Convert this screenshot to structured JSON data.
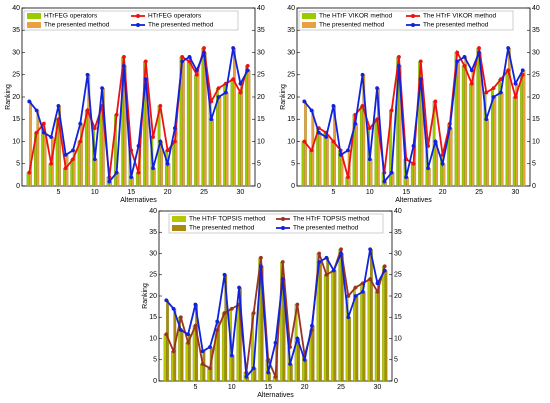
{
  "chart_data": [
    {
      "type": "combo",
      "xlabel": "Alternatives",
      "ylabel": "Ranking",
      "legend": "upper left",
      "x": [
        1,
        2,
        3,
        4,
        5,
        6,
        7,
        8,
        9,
        10,
        11,
        12,
        13,
        14,
        15,
        16,
        17,
        18,
        19,
        20,
        21,
        22,
        23,
        24,
        25,
        26,
        27,
        28,
        29,
        30,
        31
      ],
      "xlim": [
        0,
        32
      ],
      "xticks": [
        5,
        10,
        15,
        20,
        25,
        30
      ],
      "ylim": [
        0,
        40
      ],
      "yticks": [
        0,
        5,
        10,
        15,
        20,
        25,
        30,
        35,
        40
      ],
      "y2lim": [
        0,
        40
      ],
      "y2ticks": [
        0,
        5,
        10,
        15,
        20,
        25,
        30,
        35,
        40
      ],
      "series": [
        {
          "name": "HTrFEG operators",
          "type": "bar",
          "color": "#99cc00",
          "values": [
            3,
            12,
            14,
            5,
            15,
            4,
            6,
            10,
            17,
            13,
            18,
            2,
            16,
            29,
            8,
            3,
            28,
            11,
            18,
            8,
            10,
            29,
            28,
            25,
            31,
            19,
            22,
            23,
            24,
            21,
            27
          ]
        },
        {
          "name": "The presented method",
          "type": "bar",
          "color": "#e8a040",
          "values": [
            19,
            17,
            12,
            11,
            18,
            7,
            8,
            14,
            25,
            6,
            22,
            1,
            3,
            27,
            2,
            9,
            24,
            4,
            10,
            5,
            13,
            28,
            29,
            26,
            30,
            15,
            20,
            21,
            31,
            23,
            26
          ]
        },
        {
          "name": "HTrFEG operators",
          "type": "line",
          "color": "#ee1111",
          "values": [
            3,
            12,
            14,
            5,
            15,
            4,
            6,
            10,
            17,
            13,
            18,
            2,
            16,
            29,
            8,
            3,
            28,
            11,
            18,
            8,
            10,
            29,
            28,
            25,
            31,
            19,
            22,
            23,
            24,
            21,
            27
          ]
        },
        {
          "name": "The presented method",
          "type": "line",
          "color": "#1122dd",
          "values": [
            19,
            17,
            12,
            11,
            18,
            7,
            8,
            14,
            25,
            6,
            22,
            1,
            3,
            27,
            2,
            9,
            24,
            4,
            10,
            5,
            13,
            28,
            29,
            26,
            30,
            15,
            20,
            21,
            31,
            23,
            26
          ]
        }
      ]
    },
    {
      "type": "combo",
      "xlabel": "Alternatives",
      "ylabel": "Ranking",
      "legend": "upper left",
      "x": [
        1,
        2,
        3,
        4,
        5,
        6,
        7,
        8,
        9,
        10,
        11,
        12,
        13,
        14,
        15,
        16,
        17,
        18,
        19,
        20,
        21,
        22,
        23,
        24,
        25,
        26,
        27,
        28,
        29,
        30,
        31
      ],
      "xlim": [
        0,
        32
      ],
      "xticks": [
        5,
        10,
        15,
        20,
        25,
        30
      ],
      "ylim": [
        0,
        40
      ],
      "yticks": [
        0,
        5,
        10,
        15,
        20,
        25,
        30,
        35,
        40
      ],
      "y2lim": [
        0,
        40
      ],
      "y2ticks": [
        0,
        5,
        10,
        15,
        20,
        25,
        30,
        35,
        40
      ],
      "series": [
        {
          "name": "The HTrF VIKOR method",
          "type": "bar",
          "color": "#99cc00",
          "values": [
            10,
            8,
            13,
            12,
            10,
            8,
            2,
            16,
            18,
            13,
            15,
            3,
            17,
            29,
            6,
            5,
            28,
            9,
            19,
            7,
            14,
            30,
            27,
            23,
            31,
            21,
            22,
            24,
            26,
            20,
            25
          ]
        },
        {
          "name": "The presented method",
          "type": "bar",
          "color": "#e8a040",
          "values": [
            19,
            17,
            12,
            11,
            18,
            7,
            8,
            14,
            25,
            6,
            22,
            1,
            3,
            27,
            2,
            9,
            24,
            4,
            10,
            5,
            13,
            28,
            29,
            26,
            30,
            15,
            20,
            21,
            31,
            23,
            26
          ]
        },
        {
          "name": "The HTrF VIKOR method",
          "type": "line",
          "color": "#ee1111",
          "values": [
            10,
            8,
            13,
            12,
            10,
            8,
            2,
            16,
            18,
            13,
            15,
            3,
            17,
            29,
            6,
            5,
            28,
            9,
            19,
            7,
            14,
            30,
            27,
            23,
            31,
            21,
            22,
            24,
            26,
            20,
            25
          ]
        },
        {
          "name": "The presented method",
          "type": "line",
          "color": "#1122dd",
          "values": [
            19,
            17,
            12,
            11,
            18,
            7,
            8,
            14,
            25,
            6,
            22,
            1,
            3,
            27,
            2,
            9,
            24,
            4,
            10,
            5,
            13,
            28,
            29,
            26,
            30,
            15,
            20,
            21,
            31,
            23,
            26
          ]
        }
      ]
    },
    {
      "type": "combo",
      "xlabel": "Alternatives",
      "ylabel": "Ranking",
      "legend": "upper center",
      "x": [
        1,
        2,
        3,
        4,
        5,
        6,
        7,
        8,
        9,
        10,
        11,
        12,
        13,
        14,
        15,
        16,
        17,
        18,
        19,
        20,
        21,
        22,
        23,
        24,
        25,
        26,
        27,
        28,
        29,
        30,
        31
      ],
      "xlim": [
        0,
        32
      ],
      "xticks": [
        5,
        10,
        15,
        20,
        25,
        30
      ],
      "ylim": [
        0,
        40
      ],
      "yticks": [
        0,
        5,
        10,
        15,
        20,
        25,
        30,
        35,
        40
      ],
      "y2lim": [
        0,
        40
      ],
      "y2ticks": [
        0,
        5,
        10,
        15,
        20,
        25,
        30,
        35,
        40
      ],
      "series": [
        {
          "name": "The HTrF TOPSIS method",
          "type": "bar",
          "color": "#b8c800",
          "values": [
            11,
            7,
            15,
            9,
            13,
            4,
            3,
            12,
            16,
            17,
            18,
            2,
            16,
            29,
            5,
            1,
            28,
            8,
            18,
            6,
            12,
            30,
            25,
            26,
            31,
            20,
            22,
            23,
            24,
            21,
            27
          ]
        },
        {
          "name": "The presented method",
          "type": "bar",
          "color": "#a88a10",
          "values": [
            19,
            17,
            12,
            11,
            18,
            7,
            8,
            14,
            25,
            6,
            22,
            1,
            3,
            27,
            2,
            9,
            24,
            4,
            10,
            5,
            13,
            28,
            29,
            26,
            30,
            15,
            20,
            21,
            31,
            23,
            26
          ]
        },
        {
          "name": "The HTrF TOPSIS method",
          "type": "line",
          "color": "#993322",
          "values": [
            11,
            7,
            15,
            9,
            13,
            4,
            3,
            12,
            16,
            17,
            18,
            2,
            16,
            29,
            5,
            1,
            28,
            8,
            18,
            6,
            12,
            30,
            25,
            26,
            31,
            20,
            22,
            23,
            24,
            21,
            27
          ]
        },
        {
          "name": "The presented method",
          "type": "line",
          "color": "#1122dd",
          "values": [
            19,
            17,
            12,
            11,
            18,
            7,
            8,
            14,
            25,
            6,
            22,
            1,
            3,
            27,
            2,
            9,
            24,
            4,
            10,
            5,
            13,
            28,
            29,
            26,
            30,
            15,
            20,
            21,
            31,
            23,
            26
          ]
        }
      ]
    }
  ]
}
